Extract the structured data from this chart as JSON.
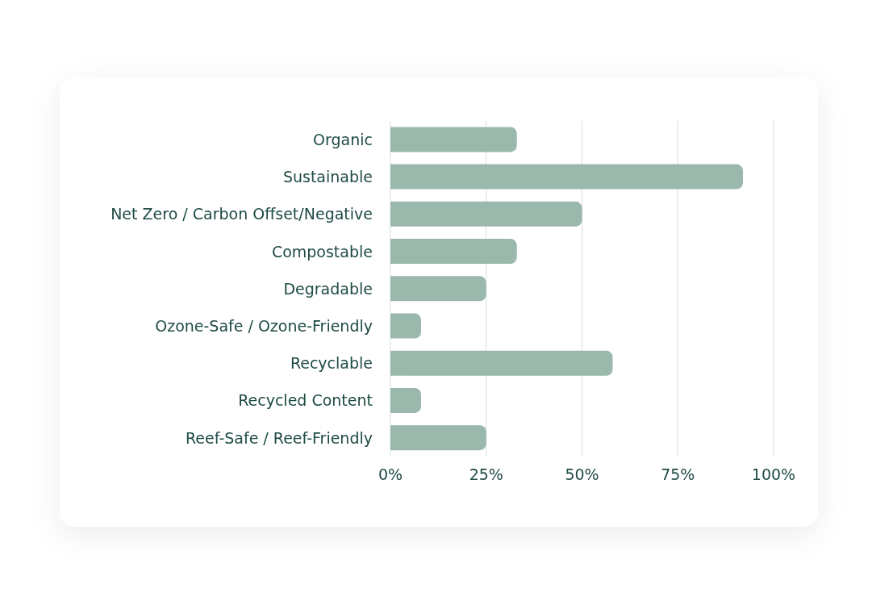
{
  "chart_data": {
    "type": "bar",
    "orientation": "horizontal",
    "categories": [
      "Organic",
      "Sustainable",
      "Net Zero / Carbon Offset/Negative",
      "Compostable",
      "Degradable",
      "Ozone-Safe / Ozone-Friendly",
      "Recyclable",
      "Recycled Content",
      "Reef-Safe / Reef-Friendly"
    ],
    "values": [
      33,
      92,
      50,
      33,
      25,
      8,
      58,
      8,
      25
    ],
    "color": "#9ab8ab",
    "xlim": [
      0,
      100
    ],
    "xticks": [
      {
        "value": 0,
        "label": "0%"
      },
      {
        "value": 25,
        "label": "25%"
      },
      {
        "value": 50,
        "label": "50%"
      },
      {
        "value": 75,
        "label": "75%"
      },
      {
        "value": 100,
        "label": "100%"
      }
    ],
    "grid": "x"
  }
}
